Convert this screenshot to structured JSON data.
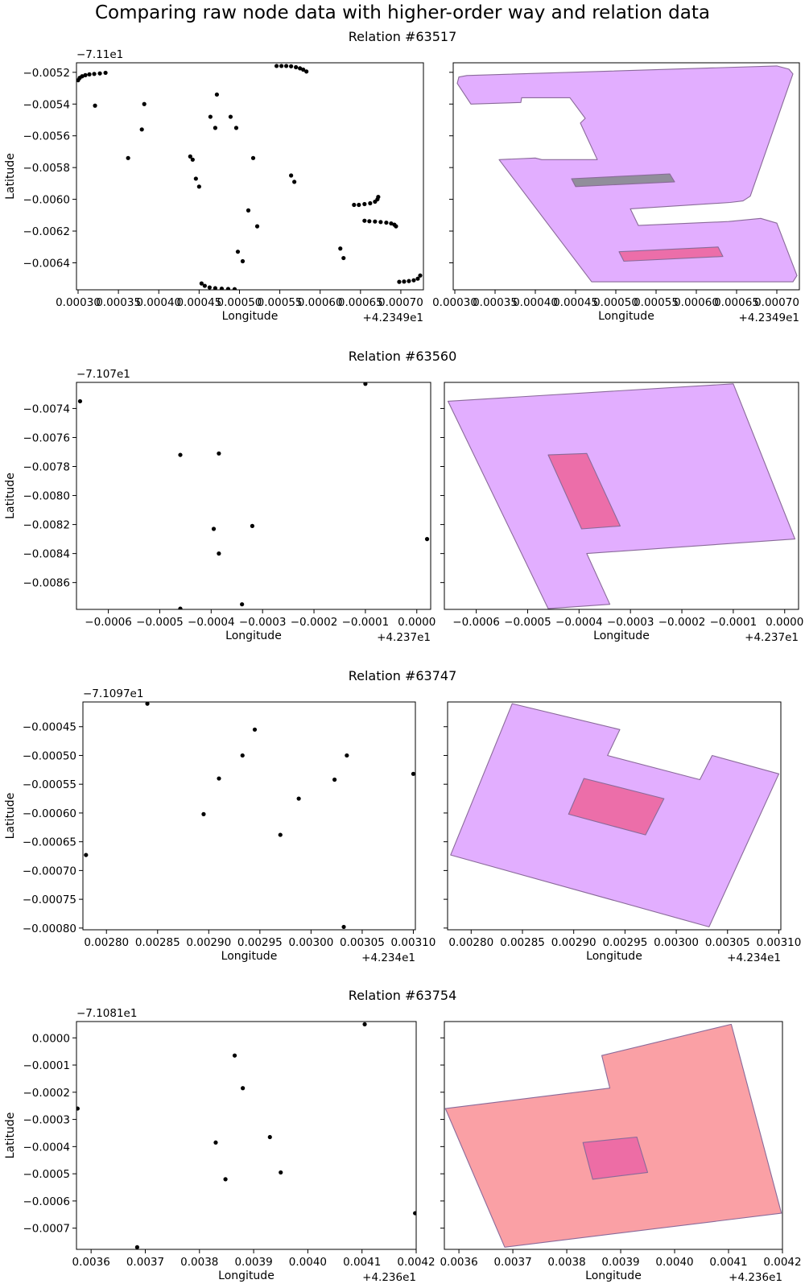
{
  "title": "Comparing raw node data with higher-order way and relation data",
  "colors": {
    "outer_purple": "#e0aaff",
    "outer_salmon": "#fa9ba0",
    "inner_pink": "#ec6aa4",
    "inner_gray": "#8c8c96",
    "edge": "#8a6a9a",
    "point": "#000000"
  },
  "rows": [
    {
      "title": "Relation #63517",
      "x_offset": "+4.2349e1",
      "y_offset": "−7.11e1",
      "xlabel": "Longitude",
      "ylabel": "Latitude",
      "xticks": [
        0.0003,
        0.00035,
        0.0004,
        0.00045,
        0.0005,
        0.00055,
        0.0006,
        0.00065,
        0.0007
      ],
      "xtick_labels": [
        "0.00030",
        "0.00035",
        "0.00040",
        "0.00045",
        "0.00050",
        "0.00055",
        "0.00060",
        "0.00065",
        "0.00070"
      ],
      "yticks": [
        -0.0052,
        -0.0054,
        -0.0056,
        -0.0058,
        -0.006,
        -0.0062,
        -0.0064
      ],
      "ytick_labels": [
        "−0.0052",
        "−0.0054",
        "−0.0056",
        "−0.0058",
        "−0.0060",
        "−0.0062",
        "−0.0064"
      ]
    },
    {
      "title": "Relation #63560",
      "x_offset": "+4.237e1",
      "y_offset": "−7.107e1",
      "xlabel": "Longitude",
      "ylabel": "Latitude",
      "xticks": [
        -0.0006,
        -0.0005,
        -0.0004,
        -0.0003,
        -0.0002,
        -0.0001,
        0.0
      ],
      "xtick_labels": [
        "−0.0006",
        "−0.0005",
        "−0.0004",
        "−0.0003",
        "−0.0002",
        "−0.0001",
        "0.0000"
      ],
      "yticks": [
        -0.0074,
        -0.0076,
        -0.0078,
        -0.008,
        -0.0082,
        -0.0084,
        -0.0086
      ],
      "ytick_labels": [
        "−0.0074",
        "−0.0076",
        "−0.0078",
        "−0.0080",
        "−0.0082",
        "−0.0084",
        "−0.0086"
      ]
    },
    {
      "title": "Relation #63747",
      "x_offset": "+4.234e1",
      "y_offset": "−7.1097e1",
      "xlabel": "Longitude",
      "ylabel": "Latitude",
      "xticks": [
        0.0028,
        0.00285,
        0.0029,
        0.00295,
        0.003,
        0.00305,
        0.0031
      ],
      "xtick_labels": [
        "0.00280",
        "0.00285",
        "0.00290",
        "0.00295",
        "0.00300",
        "0.00305",
        "0.00310"
      ],
      "yticks": [
        -0.00045,
        -0.0005,
        -0.00055,
        -0.0006,
        -0.00065,
        -0.0007,
        -0.00075,
        -0.0008
      ],
      "ytick_labels": [
        "−0.00045",
        "−0.00050",
        "−0.00055",
        "−0.00060",
        "−0.00065",
        "−0.00070",
        "−0.00075",
        "−0.00080"
      ]
    },
    {
      "title": "Relation #63754",
      "x_offset": "+4.236e1",
      "y_offset": "−7.1081e1",
      "xlabel": "Longitude",
      "ylabel": "Latitude",
      "xticks": [
        0.0036,
        0.0037,
        0.0038,
        0.0039,
        0.004,
        0.0041,
        0.0042
      ],
      "xtick_labels": [
        "0.0036",
        "0.0037",
        "0.0038",
        "0.0039",
        "0.0040",
        "0.0041",
        "0.0042"
      ],
      "yticks": [
        0.0,
        -0.0001,
        -0.0002,
        -0.0003,
        -0.0004,
        -0.0005,
        -0.0006,
        -0.0007
      ],
      "ytick_labels": [
        "0.0000",
        "−0.0001",
        "−0.0002",
        "−0.0003",
        "−0.0004",
        "−0.0005",
        "−0.0006",
        "−0.0007"
      ]
    }
  ],
  "chart_data": [
    {
      "type": "scatter",
      "title": "Relation #63517",
      "xlabel": "Longitude",
      "ylabel": "Latitude",
      "xlim": [
        0.000298,
        0.000728
      ],
      "ylim": [
        -0.00657,
        -0.00514
      ],
      "points": [
        [
          0.0003,
          -0.00525
        ],
        [
          0.000302,
          -0.005235
        ],
        [
          0.000305,
          -0.005225
        ],
        [
          0.000309,
          -0.005218
        ],
        [
          0.000314,
          -0.005213
        ],
        [
          0.00032,
          -0.00521
        ],
        [
          0.000327,
          -0.005207
        ],
        [
          0.000334,
          -0.005203
        ],
        [
          0.000321,
          -0.00541
        ],
        [
          0.000362,
          -0.00574
        ],
        [
          0.000379,
          -0.00556
        ],
        [
          0.000382,
          -0.0054
        ],
        [
          0.000439,
          -0.00573
        ],
        [
          0.000442,
          -0.00575
        ],
        [
          0.000446,
          -0.00587
        ],
        [
          0.00045,
          -0.00592
        ],
        [
          0.000464,
          -0.00548
        ],
        [
          0.00047,
          -0.00555
        ],
        [
          0.000472,
          -0.00534
        ],
        [
          0.000489,
          -0.00548
        ],
        [
          0.000496,
          -0.00555
        ],
        [
          0.000453,
          -0.00653
        ],
        [
          0.000457,
          -0.006545
        ],
        [
          0.000463,
          -0.006555
        ],
        [
          0.00047,
          -0.00656
        ],
        [
          0.000478,
          -0.006563
        ],
        [
          0.000486,
          -0.006565
        ],
        [
          0.000494,
          -0.006566
        ],
        [
          0.000498,
          -0.00633
        ],
        [
          0.000504,
          -0.00639
        ],
        [
          0.000511,
          -0.00607
        ],
        [
          0.000517,
          -0.00574
        ],
        [
          0.000522,
          -0.00617
        ],
        [
          0.000546,
          -0.00516
        ],
        [
          0.000552,
          -0.00516
        ],
        [
          0.000558,
          -0.00516
        ],
        [
          0.000564,
          -0.005162
        ],
        [
          0.00057,
          -0.005168
        ],
        [
          0.000575,
          -0.005175
        ],
        [
          0.000579,
          -0.005183
        ],
        [
          0.000583,
          -0.005195
        ],
        [
          0.000564,
          -0.00585
        ],
        [
          0.000568,
          -0.00589
        ],
        [
          0.000625,
          -0.00631
        ],
        [
          0.000629,
          -0.00637
        ],
        [
          0.000642,
          -0.006035
        ],
        [
          0.000648,
          -0.006035
        ],
        [
          0.000655,
          -0.00603
        ],
        [
          0.000662,
          -0.006025
        ],
        [
          0.000668,
          -0.006015
        ],
        [
          0.000671,
          -0.006
        ],
        [
          0.000672,
          -0.005985
        ],
        [
          0.000655,
          -0.006135
        ],
        [
          0.000661,
          -0.006138
        ],
        [
          0.000668,
          -0.00614
        ],
        [
          0.000675,
          -0.006143
        ],
        [
          0.000682,
          -0.006147
        ],
        [
          0.000688,
          -0.006152
        ],
        [
          0.000692,
          -0.00616
        ],
        [
          0.000694,
          -0.00617
        ],
        [
          0.000698,
          -0.00652
        ],
        [
          0.000704,
          -0.006518
        ],
        [
          0.00071,
          -0.006515
        ],
        [
          0.000716,
          -0.00651
        ],
        [
          0.000721,
          -0.0065
        ],
        [
          0.000724,
          -0.00648
        ]
      ],
      "polygons": [
        {
          "role": "outer",
          "color": "#e0aaff",
          "coords": [
            [
              0.000305,
              -0.00523
            ],
            [
              0.000315,
              -0.00522
            ],
            [
              0.0007,
              -0.00516
            ],
            [
              0.000715,
              -0.00518
            ],
            [
              0.00072,
              -0.00521
            ],
            [
              0.000667,
              -0.00598
            ],
            [
              0.000658,
              -0.00601
            ],
            [
              0.000642,
              -0.00602
            ],
            [
              0.000518,
              -0.00606
            ],
            [
              0.000528,
              -0.006165
            ],
            [
              0.00064,
              -0.00614
            ],
            [
              0.00068,
              -0.00612
            ],
            [
              0.0007,
              -0.00615
            ],
            [
              0.000725,
              -0.00648
            ],
            [
              0.00072,
              -0.00652
            ],
            [
              0.00047,
              -0.00652
            ],
            [
              0.000355,
              -0.00575
            ],
            [
              0.0004,
              -0.00574
            ],
            [
              0.000408,
              -0.00575
            ],
            [
              0.000477,
              -0.00575
            ],
            [
              0.000456,
              -0.00552
            ],
            [
              0.000462,
              -0.00549
            ],
            [
              0.000443,
              -0.00536
            ],
            [
              0.000383,
              -0.00536
            ],
            [
              0.000382,
              -0.00539
            ],
            [
              0.00032,
              -0.0054
            ],
            [
              0.000303,
              -0.00527
            ]
          ]
        },
        {
          "role": "inner",
          "color": "#8c8c96",
          "coords": [
            [
              0.000445,
              -0.00587
            ],
            [
              0.000567,
              -0.00584
            ],
            [
              0.000573,
              -0.00589
            ],
            [
              0.00045,
              -0.00592
            ]
          ]
        },
        {
          "role": "inner",
          "color": "#ec6aa4",
          "coords": [
            [
              0.000504,
              -0.00633
            ],
            [
              0.000627,
              -0.0063
            ],
            [
              0.000633,
              -0.00636
            ],
            [
              0.00051,
              -0.00639
            ]
          ]
        }
      ]
    },
    {
      "type": "scatter",
      "title": "Relation #63560",
      "xlabel": "Longitude",
      "ylabel": "Latitude",
      "xlim": [
        -0.000662,
        2.7e-05
      ],
      "ylim": [
        -0.008785,
        -0.00722
      ],
      "points": [
        [
          -0.000655,
          -0.00735
        ],
        [
          -0.0001,
          -0.00723
        ],
        [
          -0.00046,
          -0.00772
        ],
        [
          -0.000385,
          -0.00771
        ],
        [
          -0.000395,
          -0.00823
        ],
        [
          -0.00032,
          -0.00821
        ],
        [
          -0.000385,
          -0.0084
        ],
        [
          -0.00034,
          -0.00875
        ],
        [
          -0.00046,
          -0.00878
        ],
        [
          2e-05,
          -0.0083
        ]
      ],
      "polygons": [
        {
          "role": "outer",
          "color": "#e0aaff",
          "coords": [
            [
              -0.000655,
              -0.00735
            ],
            [
              -0.0001,
              -0.00723
            ],
            [
              2e-05,
              -0.0083
            ],
            [
              -0.000385,
              -0.0084
            ],
            [
              -0.00034,
              -0.00875
            ],
            [
              -0.00046,
              -0.00878
            ]
          ]
        },
        {
          "role": "inner",
          "color": "#ec6aa4",
          "coords": [
            [
              -0.00046,
              -0.00772
            ],
            [
              -0.000385,
              -0.00771
            ],
            [
              -0.00032,
              -0.00821
            ],
            [
              -0.000395,
              -0.00823
            ]
          ]
        }
      ]
    },
    {
      "type": "scatter",
      "title": "Relation #63747",
      "xlabel": "Longitude",
      "ylabel": "Latitude",
      "xlim": [
        0.002777,
        0.003102
      ],
      "ylim": [
        -0.000803,
        -0.000407
      ],
      "points": [
        [
          0.00284,
          -0.00041
        ],
        [
          0.002945,
          -0.000455
        ],
        [
          0.002933,
          -0.0005
        ],
        [
          0.003035,
          -0.0005
        ],
        [
          0.00291,
          -0.00054
        ],
        [
          0.003023,
          -0.000542
        ],
        [
          0.0031,
          -0.000532
        ],
        [
          0.002988,
          -0.000575
        ],
        [
          0.002895,
          -0.000602
        ],
        [
          0.00297,
          -0.000638
        ],
        [
          0.00278,
          -0.000673
        ],
        [
          0.003032,
          -0.000798
        ]
      ],
      "polygons": [
        {
          "role": "outer",
          "color": "#e0aaff",
          "coords": [
            [
              0.00284,
              -0.00041
            ],
            [
              0.002945,
              -0.000455
            ],
            [
              0.002933,
              -0.0005
            ],
            [
              0.003023,
              -0.000542
            ],
            [
              0.003035,
              -0.0005
            ],
            [
              0.0031,
              -0.000532
            ],
            [
              0.003032,
              -0.000798
            ],
            [
              0.00278,
              -0.000673
            ]
          ]
        },
        {
          "role": "inner",
          "color": "#ec6aa4",
          "coords": [
            [
              0.00291,
              -0.00054
            ],
            [
              0.002988,
              -0.000575
            ],
            [
              0.00297,
              -0.000638
            ],
            [
              0.002895,
              -0.000602
            ]
          ]
        }
      ]
    },
    {
      "type": "scatter",
      "title": "Relation #63754",
      "xlabel": "Longitude",
      "ylabel": "Latitude",
      "xlim": [
        0.003573,
        0.0042
      ],
      "ylim": [
        -0.000778,
        6e-05
      ],
      "points": [
        [
          0.004105,
          5e-05
        ],
        [
          0.003865,
          -6.5e-05
        ],
        [
          0.00388,
          -0.000185
        ],
        [
          0.003575,
          -0.00026
        ],
        [
          0.00383,
          -0.000385
        ],
        [
          0.00393,
          -0.000365
        ],
        [
          0.00395,
          -0.000495
        ],
        [
          0.003848,
          -0.00052
        ],
        [
          0.004198,
          -0.000645
        ],
        [
          0.003685,
          -0.00077
        ]
      ],
      "polygons": [
        {
          "role": "outer",
          "color": "#fa9ba0",
          "coords": [
            [
              0.003575,
              -0.00026
            ],
            [
              0.00388,
              -0.000185
            ],
            [
              0.003865,
              -6.5e-05
            ],
            [
              0.004105,
              5e-05
            ],
            [
              0.004198,
              -0.000645
            ],
            [
              0.003685,
              -0.00077
            ]
          ]
        },
        {
          "role": "inner",
          "color": "#ec6aa4",
          "coords": [
            [
              0.00383,
              -0.000385
            ],
            [
              0.00393,
              -0.000365
            ],
            [
              0.00395,
              -0.000495
            ],
            [
              0.003848,
              -0.00052
            ]
          ]
        }
      ]
    }
  ]
}
